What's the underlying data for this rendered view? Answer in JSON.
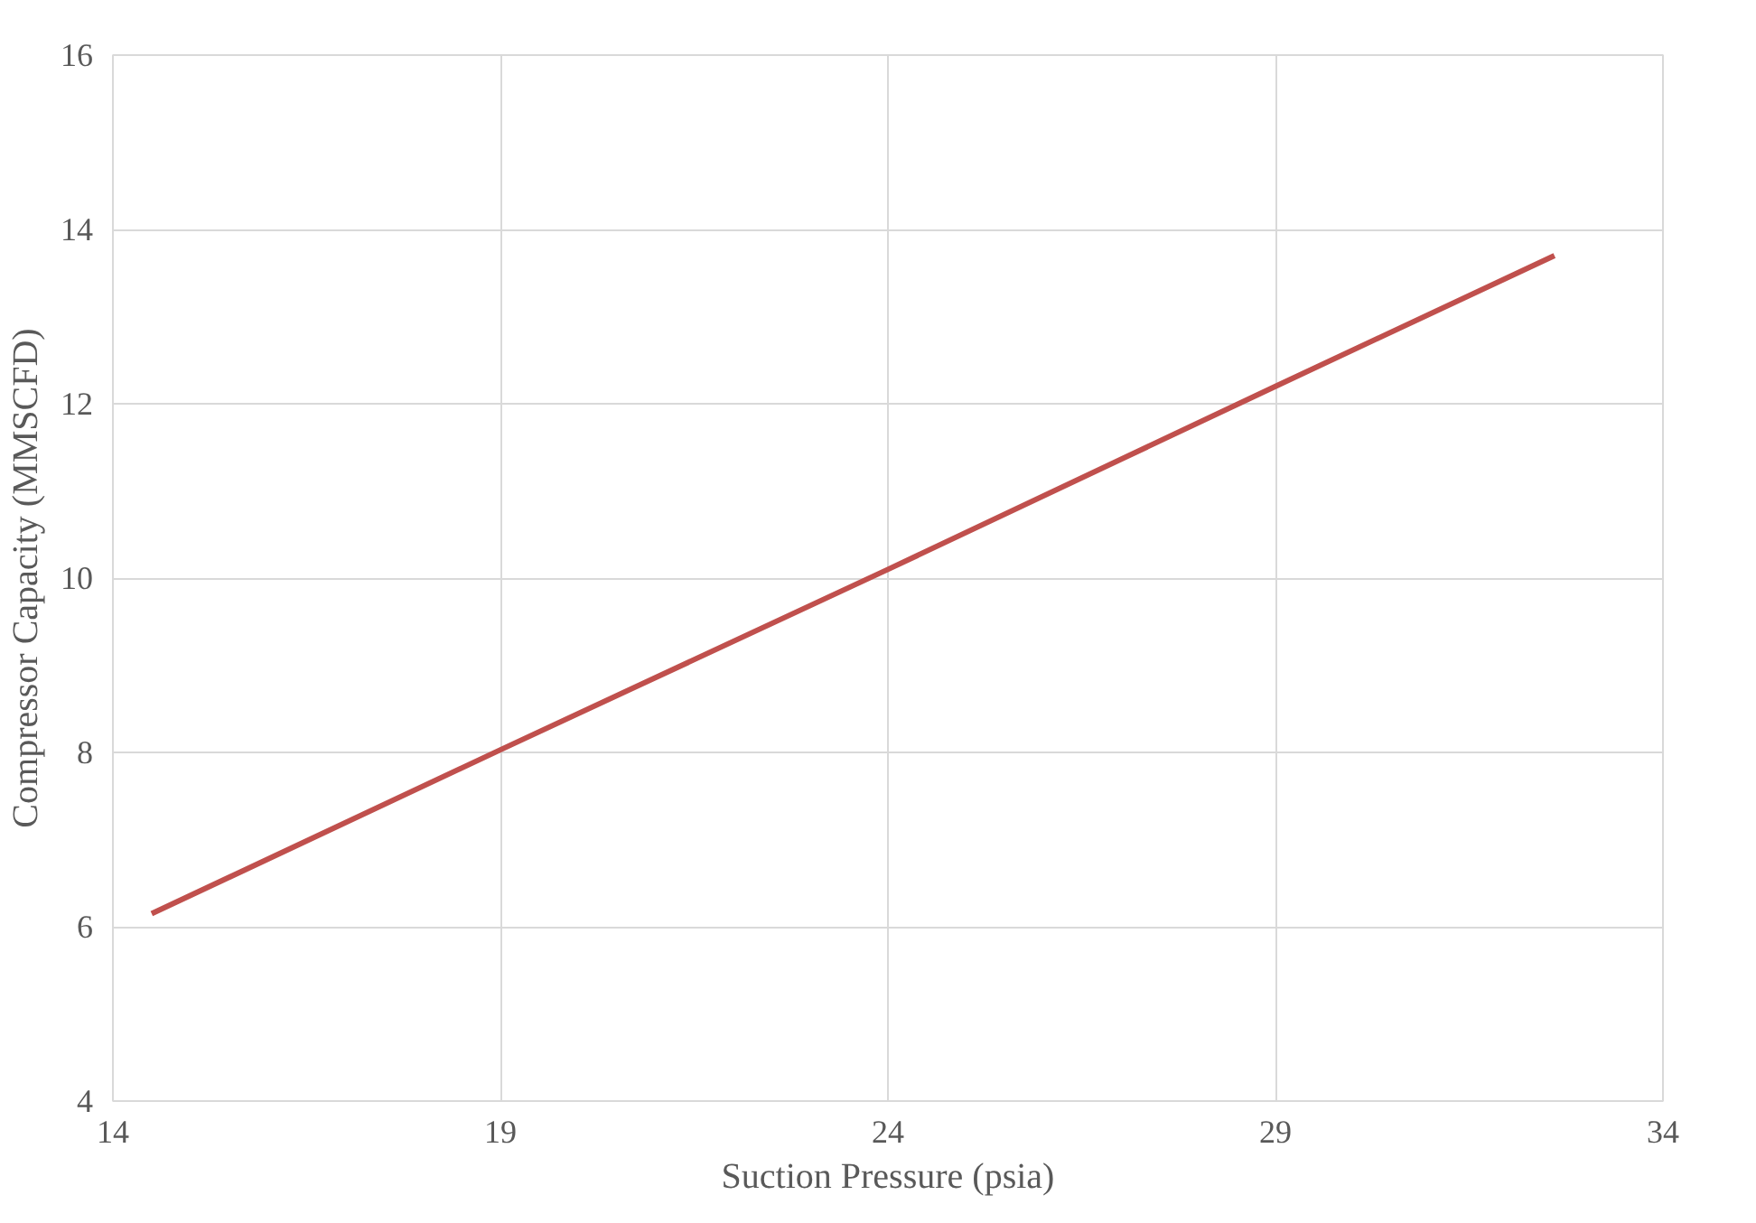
{
  "chart_data": {
    "type": "line",
    "xlabel": "Suction Pressure (psia)",
    "ylabel": "Compressor Capacity (MMSCFD)",
    "x": [
      14.5,
      19,
      24,
      29,
      32.6
    ],
    "series": [
      {
        "color": "#c0504d",
        "values": [
          6.15,
          8.03,
          10.1,
          12.2,
          13.7
        ]
      }
    ],
    "xlim": [
      14,
      34
    ],
    "xticks": [
      14,
      19,
      24,
      29,
      34
    ],
    "ylim": [
      4,
      16
    ],
    "yticks": [
      4,
      6,
      8,
      10,
      12,
      14,
      16
    ],
    "grid": true,
    "marker": "none",
    "line_style": "solid"
  }
}
